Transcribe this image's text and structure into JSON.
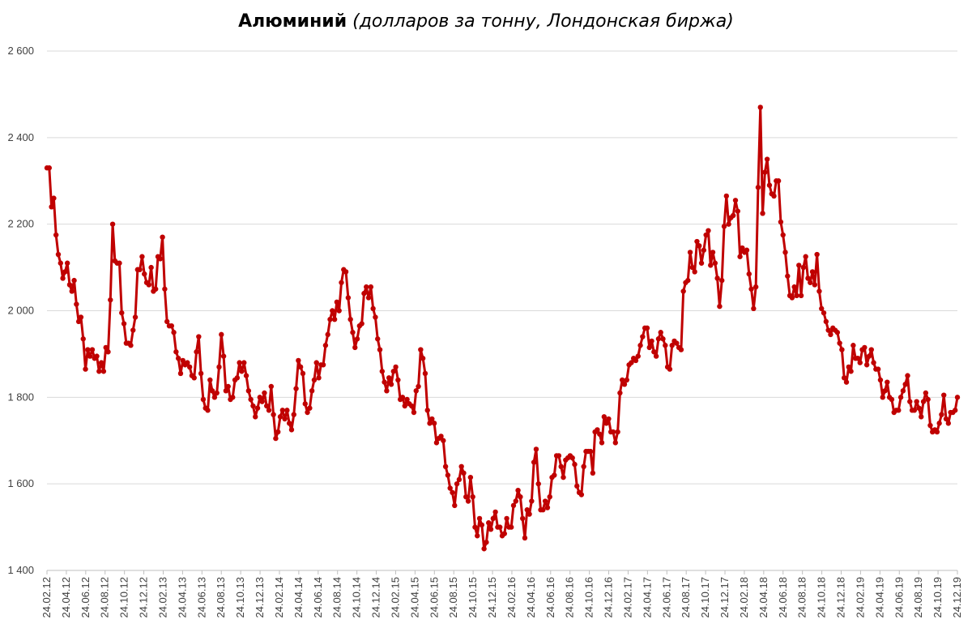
{
  "chart_data": {
    "type": "line",
    "title": "Алюминий",
    "subtitle": "(долларов за тонну, Лондонская биржа)",
    "xlabel": "",
    "ylabel": "",
    "ylim": [
      1400,
      2600
    ],
    "yticks": [
      "1 400",
      "1 600",
      "1 800",
      "2 000",
      "2 200",
      "2 400",
      "2 600"
    ],
    "ytick_values": [
      1400,
      1600,
      1800,
      2000,
      2200,
      2400,
      2600
    ],
    "xticks": [
      "24.02.12",
      "24.04.12",
      "24.06.12",
      "24.08.12",
      "24.10.12",
      "24.12.12",
      "24.02.13",
      "24.04.13",
      "24.06.13",
      "24.08.13",
      "24.10.13",
      "24.12.13",
      "24.02.14",
      "24.04.14",
      "24.06.14",
      "24.08.14",
      "24.10.14",
      "24.12.14",
      "24.02.15",
      "24.04.15",
      "24.06.15",
      "24.08.15",
      "24.10.15",
      "24.12.15",
      "24.02.16",
      "24.04.16",
      "24.06.16",
      "24.08.16",
      "24.10.16",
      "24.12.16",
      "24.02.17",
      "24.04.17",
      "24.06.17",
      "24.08.17",
      "24.10.17",
      "24.12.17",
      "24.02.18",
      "24.04.18",
      "24.06.18",
      "24.08.18",
      "24.10.18",
      "24.12.18",
      "24.02.19",
      "24.04.19",
      "24.06.19",
      "24.08.19",
      "24.10.19",
      "24.12.19"
    ],
    "grid": true,
    "legend": "none",
    "line_color": "#c00000",
    "series": [
      {
        "values": [
          2330,
          2330,
          2240,
          2260,
          2175,
          2130,
          2110,
          2075,
          2090,
          2110,
          2060,
          2045,
          2070,
          2015,
          1975,
          1985,
          1935,
          1865,
          1910,
          1895,
          1910,
          1890,
          1895,
          1860,
          1880,
          1860,
          1915,
          1905,
          2025,
          2200,
          2115,
          2110,
          2110,
          1995,
          1970,
          1925,
          1925,
          1920,
          1955,
          1985,
          2095,
          2095,
          2125,
          2085,
          2065,
          2060,
          2100,
          2045,
          2050,
          2125,
          2120,
          2170,
          2050,
          1975,
          1965,
          1965,
          1950,
          1905,
          1890,
          1855,
          1885,
          1875,
          1880,
          1870,
          1850,
          1845,
          1905,
          1940,
          1855,
          1795,
          1775,
          1770,
          1840,
          1815,
          1800,
          1810,
          1870,
          1945,
          1895,
          1815,
          1825,
          1795,
          1800,
          1840,
          1845,
          1880,
          1860,
          1880,
          1850,
          1815,
          1795,
          1780,
          1755,
          1775,
          1800,
          1790,
          1810,
          1780,
          1770,
          1825,
          1760,
          1705,
          1720,
          1755,
          1770,
          1750,
          1770,
          1740,
          1725,
          1760,
          1820,
          1885,
          1870,
          1855,
          1785,
          1765,
          1775,
          1815,
          1840,
          1880,
          1845,
          1875,
          1875,
          1920,
          1945,
          1980,
          2000,
          1980,
          2020,
          2000,
          2065,
          2095,
          2090,
          2030,
          1980,
          1950,
          1915,
          1935,
          1965,
          1970,
          2040,
          2055,
          2030,
          2055,
          2005,
          1985,
          1935,
          1910,
          1860,
          1835,
          1815,
          1845,
          1830,
          1860,
          1870,
          1840,
          1795,
          1800,
          1780,
          1795,
          1785,
          1780,
          1765,
          1815,
          1825,
          1910,
          1890,
          1855,
          1770,
          1740,
          1750,
          1740,
          1695,
          1705,
          1710,
          1700,
          1640,
          1620,
          1590,
          1580,
          1550,
          1600,
          1610,
          1640,
          1625,
          1570,
          1560,
          1615,
          1570,
          1500,
          1480,
          1520,
          1505,
          1450,
          1465,
          1510,
          1495,
          1520,
          1535,
          1500,
          1500,
          1480,
          1485,
          1520,
          1500,
          1500,
          1550,
          1560,
          1585,
          1570,
          1520,
          1475,
          1540,
          1530,
          1560,
          1650,
          1680,
          1600,
          1540,
          1540,
          1560,
          1545,
          1570,
          1615,
          1620,
          1665,
          1665,
          1640,
          1615,
          1655,
          1660,
          1665,
          1660,
          1645,
          1595,
          1580,
          1575,
          1640,
          1675,
          1675,
          1675,
          1625,
          1720,
          1725,
          1715,
          1695,
          1755,
          1740,
          1750,
          1720,
          1720,
          1695,
          1720,
          1810,
          1840,
          1830,
          1840,
          1875,
          1880,
          1890,
          1885,
          1895,
          1920,
          1940,
          1960,
          1960,
          1915,
          1930,
          1905,
          1895,
          1935,
          1950,
          1935,
          1920,
          1870,
          1865,
          1920,
          1930,
          1925,
          1915,
          1910,
          2045,
          2065,
          2070,
          2135,
          2100,
          2090,
          2160,
          2150,
          2110,
          2140,
          2175,
          2185,
          2105,
          2135,
          2110,
          2075,
          2010,
          2070,
          2195,
          2265,
          2200,
          2215,
          2220,
          2255,
          2230,
          2125,
          2145,
          2135,
          2140,
          2085,
          2050,
          2005,
          2055,
          2285,
          2470,
          2225,
          2320,
          2350,
          2290,
          2270,
          2265,
          2300,
          2300,
          2205,
          2175,
          2135,
          2080,
          2035,
          2030,
          2055,
          2035,
          2105,
          2035,
          2100,
          2125,
          2075,
          2065,
          2090,
          2060,
          2130,
          2045,
          2005,
          1995,
          1975,
          1955,
          1945,
          1960,
          1955,
          1950,
          1925,
          1910,
          1845,
          1835,
          1870,
          1860,
          1920,
          1890,
          1890,
          1880,
          1910,
          1915,
          1875,
          1895,
          1910,
          1880,
          1865,
          1865,
          1840,
          1800,
          1815,
          1835,
          1800,
          1795,
          1765,
          1770,
          1770,
          1800,
          1815,
          1830,
          1850,
          1790,
          1770,
          1770,
          1790,
          1775,
          1755,
          1790,
          1810,
          1795,
          1735,
          1720,
          1725,
          1720,
          1740,
          1760,
          1805,
          1750,
          1740,
          1765,
          1765,
          1770,
          1800
        ]
      }
    ]
  }
}
